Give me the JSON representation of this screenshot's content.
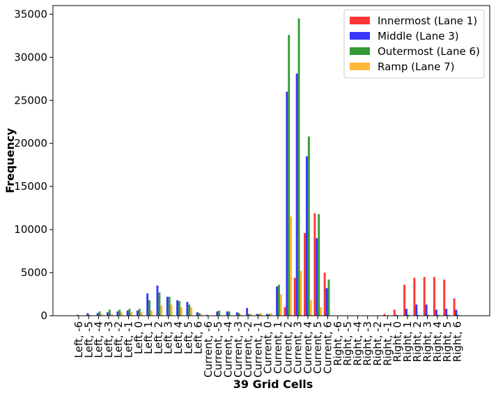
{
  "chart_data": {
    "type": "bar",
    "title": "",
    "xlabel": "39 Grid Cells",
    "ylabel": "Frequency",
    "ylim": [
      0,
      36000
    ],
    "yticks": [
      0,
      5000,
      10000,
      15000,
      20000,
      25000,
      30000,
      35000
    ],
    "grid": false,
    "legend_position": "top-right",
    "categories": [
      "Left, -6",
      "Left, -5",
      "Left, -4",
      "Left, -3",
      "Left, -2",
      "Left, -1",
      "Left, 0",
      "Left, 1",
      "Left, 2",
      "Left, 3",
      "Left, 4",
      "Left, 5",
      "Left, 6",
      "Current, -6",
      "Current, -5",
      "Current, -4",
      "Current, -3",
      "Current, -2",
      "Current, -1",
      "Current, 0",
      "Current, 1",
      "Current, 2",
      "Current, 3",
      "Current, 4",
      "Current, 5",
      "Current, 6",
      "Right, -6",
      "Right, -5",
      "Right, -4",
      "Right, -3",
      "Right, -2",
      "Right, -1",
      "Right, 0",
      "Right, 1",
      "Right, 2",
      "Right, 3",
      "Right, 4",
      "Right, 5",
      "Right, 6"
    ],
    "series": [
      {
        "name": "Innermost (Lane 1)",
        "color": "#ff2020",
        "values": [
          0,
          0,
          0,
          0,
          0,
          0,
          0,
          0,
          0,
          0,
          0,
          0,
          0,
          0,
          0,
          0,
          0,
          0,
          0,
          0,
          0,
          1000,
          4400,
          9600,
          11900,
          5000,
          0,
          0,
          0,
          0,
          0,
          200,
          700,
          3600,
          4400,
          4500,
          4500,
          4200,
          2000
        ]
      },
      {
        "name": "Middle (Lane 3)",
        "color": "#2020ff",
        "values": [
          100,
          300,
          300,
          400,
          500,
          600,
          600,
          2600,
          3500,
          2200,
          1800,
          1600,
          400,
          100,
          500,
          500,
          400,
          900,
          200,
          200,
          3400,
          26000,
          28100,
          18500,
          9000,
          3200,
          0,
          0,
          0,
          0,
          0,
          0,
          100,
          800,
          1300,
          1300,
          700,
          800,
          700
        ]
      },
      {
        "name": "Outermost (Lane 6)",
        "color": "#209020",
        "values": [
          0,
          100,
          500,
          700,
          700,
          800,
          800,
          1800,
          2700,
          2200,
          1700,
          1300,
          300,
          0,
          600,
          500,
          300,
          200,
          200,
          200,
          3600,
          32600,
          34500,
          20800,
          11800,
          4200,
          0,
          0,
          0,
          0,
          0,
          0,
          0,
          100,
          100,
          100,
          100,
          100,
          100
        ]
      },
      {
        "name": "Ramp (Lane 7)",
        "color": "#ffb020",
        "values": [
          0,
          0,
          200,
          200,
          400,
          400,
          400,
          600,
          1200,
          1300,
          1000,
          1000,
          200,
          0,
          0,
          0,
          100,
          200,
          300,
          300,
          2500,
          11500,
          5200,
          1800,
          1000,
          0,
          0,
          0,
          0,
          0,
          0,
          0,
          0,
          0,
          0,
          0,
          0,
          0,
          0
        ]
      }
    ]
  }
}
